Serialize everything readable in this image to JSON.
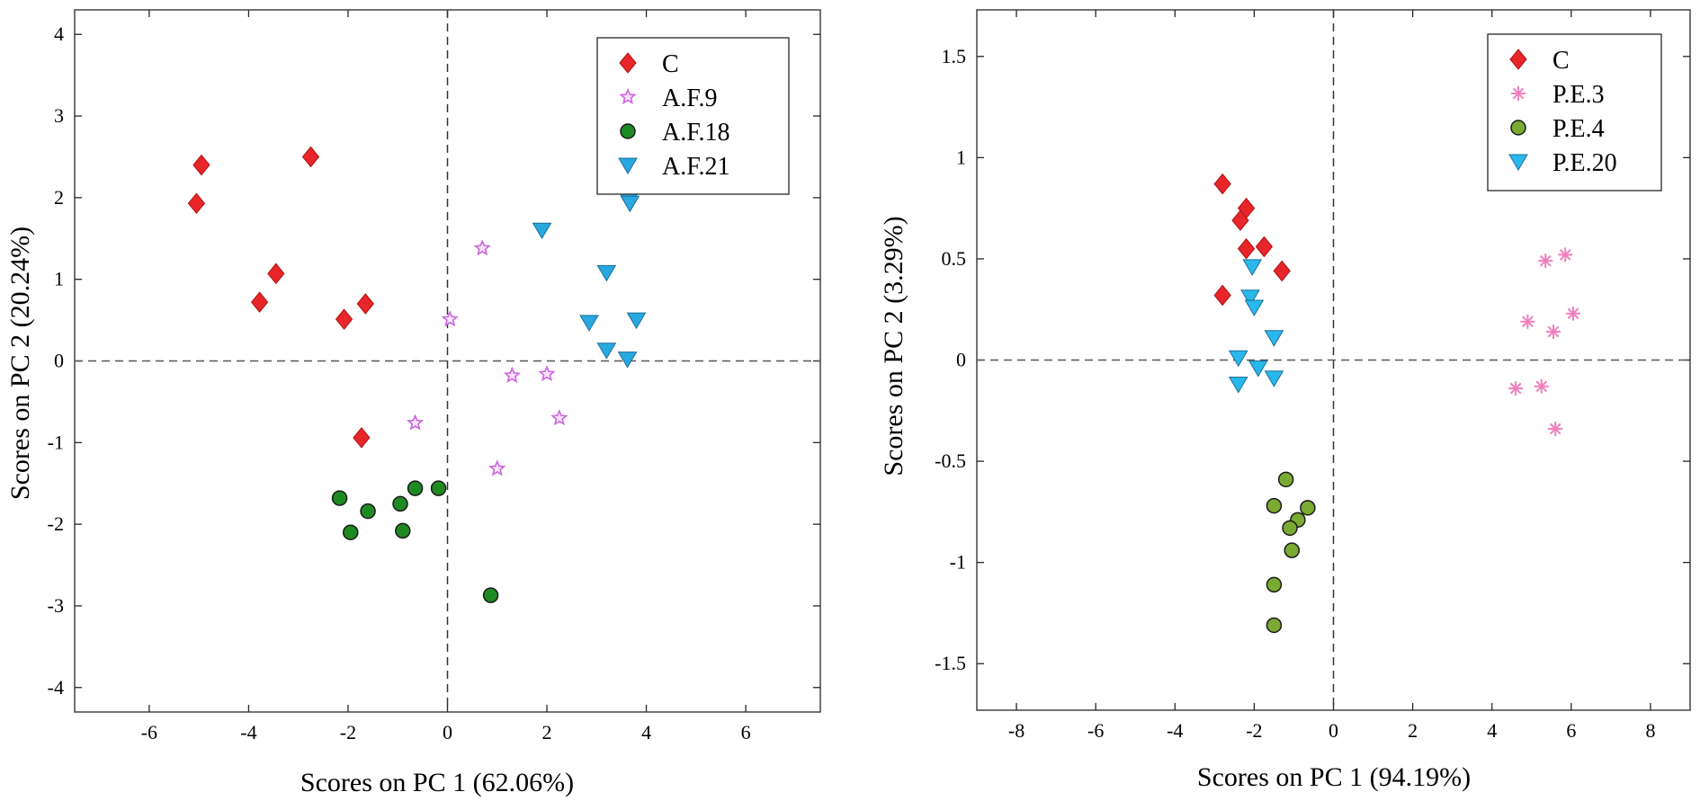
{
  "chart_data": [
    {
      "type": "scatter",
      "title": "",
      "xlabel": "Scores on PC 1 (62.06%)",
      "ylabel": "Scores on PC 2 (20.24%)",
      "xlim": [
        -7.5,
        7.5
      ],
      "ylim": [
        -4.3,
        4.3
      ],
      "xticks": [
        -6,
        -4,
        -2,
        0,
        2,
        4,
        6
      ],
      "yticks": [
        -4,
        -3,
        -2,
        -1,
        0,
        1,
        2,
        3,
        4
      ],
      "grid": false,
      "reference_lines": {
        "x": 0,
        "y": 0
      },
      "legend_position": "top-right",
      "series": [
        {
          "name": "C",
          "marker": "diamond",
          "color": "#e8262a",
          "points": [
            [
              -5.05,
              1.93
            ],
            [
              -4.95,
              2.4
            ],
            [
              -2.75,
              2.5
            ],
            [
              -3.45,
              1.07
            ],
            [
              -3.78,
              0.72
            ],
            [
              -2.08,
              0.51
            ],
            [
              -1.65,
              0.7
            ],
            [
              -1.73,
              -0.94
            ]
          ]
        },
        {
          "name": "A.F.9",
          "marker": "star",
          "color": "#cc66dd",
          "points": [
            [
              0.7,
              1.38
            ],
            [
              0.05,
              0.51
            ],
            [
              1.3,
              -0.18
            ],
            [
              2.0,
              -0.16
            ],
            [
              -0.65,
              -0.76
            ],
            [
              2.25,
              -0.7
            ],
            [
              1.0,
              -1.32
            ]
          ]
        },
        {
          "name": "A.F.18",
          "marker": "circle",
          "color": "#1e8a22",
          "points": [
            [
              -2.17,
              -1.68
            ],
            [
              -1.95,
              -2.1
            ],
            [
              -1.6,
              -1.84
            ],
            [
              -0.95,
              -1.75
            ],
            [
              -0.9,
              -2.08
            ],
            [
              -0.65,
              -1.56
            ],
            [
              -0.18,
              -1.56
            ],
            [
              0.87,
              -2.87
            ]
          ]
        },
        {
          "name": "A.F.21",
          "marker": "triangle-down",
          "color": "#29a8e0",
          "points": [
            [
              3.65,
              1.97
            ],
            [
              3.67,
              1.93
            ],
            [
              1.9,
              1.6
            ],
            [
              3.2,
              1.08
            ],
            [
              2.85,
              0.47
            ],
            [
              3.8,
              0.5
            ],
            [
              3.2,
              0.13
            ],
            [
              3.62,
              0.02
            ]
          ]
        }
      ]
    },
    {
      "type": "scatter",
      "title": "",
      "xlabel": "Scores on PC 1 (94.19%)",
      "ylabel": "Scores on PC 2 (3.29%)",
      "xlim": [
        -9,
        9
      ],
      "ylim": [
        -1.73,
        1.73
      ],
      "xticks": [
        -8,
        -6,
        -4,
        -2,
        0,
        2,
        4,
        6,
        8
      ],
      "yticks": [
        -1.5,
        -1,
        -0.5,
        0,
        0.5,
        1,
        1.5
      ],
      "grid": false,
      "reference_lines": {
        "x": 0,
        "y": 0
      },
      "legend_position": "top-right",
      "series": [
        {
          "name": "C",
          "marker": "diamond",
          "color": "#e8262a",
          "points": [
            [
              -2.8,
              0.87
            ],
            [
              -2.2,
              0.75
            ],
            [
              -2.35,
              0.69
            ],
            [
              -2.2,
              0.55
            ],
            [
              -1.75,
              0.56
            ],
            [
              -1.3,
              0.44
            ],
            [
              -2.8,
              0.32
            ]
          ]
        },
        {
          "name": "P.E.3",
          "marker": "asterisk",
          "color": "#f07fbf",
          "points": [
            [
              5.85,
              0.52
            ],
            [
              5.35,
              0.49
            ],
            [
              4.9,
              0.19
            ],
            [
              6.05,
              0.23
            ],
            [
              5.55,
              0.14
            ],
            [
              4.6,
              -0.14
            ],
            [
              5.25,
              -0.13
            ],
            [
              5.6,
              -0.34
            ]
          ]
        },
        {
          "name": "P.E.4",
          "marker": "circle",
          "color": "#7aaa32",
          "points": [
            [
              -1.2,
              -0.59
            ],
            [
              -1.5,
              -0.72
            ],
            [
              -0.65,
              -0.73
            ],
            [
              -0.9,
              -0.79
            ],
            [
              -1.1,
              -0.83
            ],
            [
              -1.05,
              -0.94
            ],
            [
              -1.5,
              -1.11
            ],
            [
              -1.5,
              -1.31
            ]
          ]
        },
        {
          "name": "P.E.20",
          "marker": "triangle-down",
          "color": "#29b8ec",
          "points": [
            [
              -2.05,
              0.46
            ],
            [
              -2.1,
              0.31
            ],
            [
              -2.0,
              0.26
            ],
            [
              -1.5,
              0.11
            ],
            [
              -2.4,
              0.01
            ],
            [
              -1.9,
              -0.04
            ],
            [
              -1.5,
              -0.09
            ],
            [
              -2.4,
              -0.12
            ]
          ]
        }
      ]
    }
  ]
}
